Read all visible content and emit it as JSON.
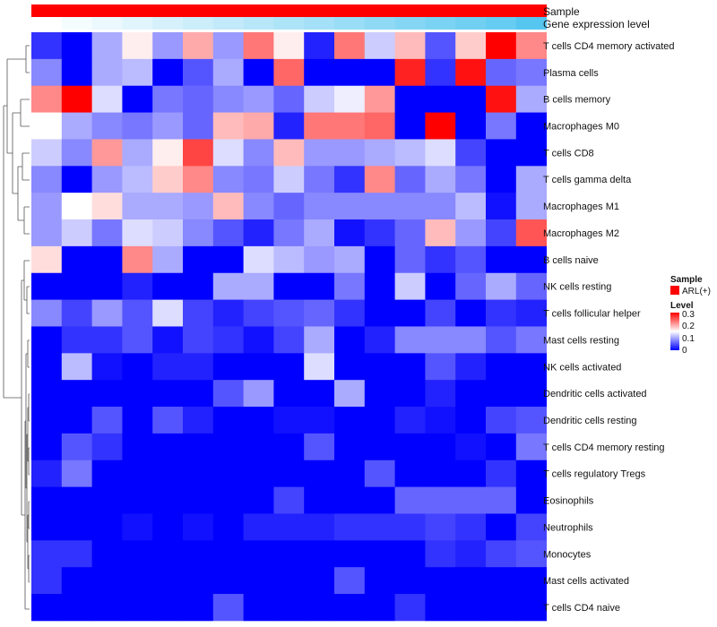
{
  "chart_data": {
    "type": "heatmap",
    "rows": [
      "T cells CD4 memory activated",
      "Plasma cells",
      "B cells memory",
      "Macrophages M0",
      "T cells CD8",
      "T cells gamma delta",
      "Macrophages M1",
      "Macrophages M2",
      "B cells naive",
      "NK cells resting",
      "T cells follicular helper",
      "Mast cells resting",
      "NK cells activated",
      "Dendritic cells activated",
      "Dendritic cells resting",
      "T cells CD4 memory resting",
      "T cells regulatory  Tregs",
      "Eosinophils",
      "Neutrophils",
      "Monocytes",
      "Mast cells activated",
      "T cells CD4 naive"
    ],
    "values": [
      [
        0.03,
        0.0,
        0.1,
        0.16,
        0.09,
        0.2,
        0.09,
        0.23,
        0.16,
        0.02,
        0.23,
        0.12,
        0.19,
        0.05,
        0.18,
        0.3,
        0.22
      ],
      [
        0.08,
        0.0,
        0.1,
        0.11,
        0.0,
        0.05,
        0.1,
        0.0,
        0.24,
        0.0,
        0.0,
        0.0,
        0.28,
        0.03,
        0.29,
        0.06,
        0.07
      ],
      [
        0.22,
        0.3,
        0.13,
        0.0,
        0.07,
        0.06,
        0.08,
        0.09,
        0.06,
        0.12,
        0.14,
        0.21,
        0.0,
        0.0,
        0.0,
        0.29,
        0.1
      ],
      [
        0.15,
        0.1,
        0.08,
        0.07,
        0.09,
        0.06,
        0.19,
        0.2,
        0.02,
        0.23,
        0.23,
        0.24,
        0.0,
        0.3,
        0.0,
        0.07,
        0.0
      ],
      [
        0.12,
        0.08,
        0.21,
        0.1,
        0.16,
        0.26,
        0.13,
        0.08,
        0.19,
        0.09,
        0.09,
        0.1,
        0.11,
        0.13,
        0.04,
        0.0,
        0.0
      ],
      [
        0.08,
        0.0,
        0.09,
        0.11,
        0.18,
        0.22,
        0.08,
        0.07,
        0.12,
        0.07,
        0.03,
        0.22,
        0.06,
        0.1,
        0.07,
        0.0,
        0.1
      ],
      [
        0.09,
        0.15,
        0.17,
        0.1,
        0.1,
        0.09,
        0.19,
        0.08,
        0.06,
        0.08,
        0.08,
        0.08,
        0.08,
        0.08,
        0.11,
        0.01,
        0.1
      ],
      [
        0.09,
        0.12,
        0.07,
        0.13,
        0.12,
        0.08,
        0.05,
        0.02,
        0.07,
        0.1,
        0.01,
        0.03,
        0.06,
        0.19,
        0.09,
        0.04,
        0.25
      ],
      [
        0.17,
        0.0,
        0.0,
        0.22,
        0.1,
        0.0,
        0.0,
        0.13,
        0.11,
        0.09,
        0.1,
        0.0,
        0.06,
        0.03,
        0.05,
        0.0,
        0.0
      ],
      [
        0.0,
        0.0,
        0.0,
        0.02,
        0.0,
        0.0,
        0.1,
        0.1,
        0.0,
        0.0,
        0.07,
        0.0,
        0.12,
        0.0,
        0.06,
        0.1,
        0.06
      ],
      [
        0.08,
        0.04,
        0.09,
        0.05,
        0.13,
        0.04,
        0.02,
        0.04,
        0.05,
        0.06,
        0.03,
        0.0,
        0.0,
        0.04,
        0.0,
        0.03,
        0.02
      ],
      [
        0.0,
        0.03,
        0.03,
        0.05,
        0.01,
        0.04,
        0.03,
        0.01,
        0.04,
        0.1,
        0.0,
        0.02,
        0.08,
        0.08,
        0.08,
        0.05,
        0.07
      ],
      [
        0.0,
        0.11,
        0.01,
        0.0,
        0.02,
        0.02,
        0.0,
        0.0,
        0.0,
        0.13,
        0.0,
        0.0,
        0.0,
        0.05,
        0.02,
        0.0,
        0.0
      ],
      [
        0.0,
        0.0,
        0.0,
        0.0,
        0.0,
        0.0,
        0.05,
        0.09,
        0.0,
        0.0,
        0.1,
        0.0,
        0.0,
        0.02,
        0.0,
        0.0,
        0.0
      ],
      [
        0.0,
        0.0,
        0.05,
        0.0,
        0.05,
        0.02,
        0.0,
        0.0,
        0.01,
        0.01,
        0.0,
        0.0,
        0.02,
        0.01,
        0.0,
        0.04,
        0.05
      ],
      [
        0.0,
        0.05,
        0.03,
        0.0,
        0.0,
        0.0,
        0.0,
        0.0,
        0.0,
        0.05,
        0.0,
        0.0,
        0.0,
        0.0,
        0.01,
        0.0,
        0.07
      ],
      [
        0.02,
        0.07,
        0.0,
        0.0,
        0.0,
        0.0,
        0.0,
        0.0,
        0.0,
        0.0,
        0.0,
        0.05,
        0.0,
        0.0,
        0.0,
        0.03,
        0.0
      ],
      [
        0.0,
        0.0,
        0.0,
        0.0,
        0.0,
        0.0,
        0.0,
        0.0,
        0.04,
        0.0,
        0.0,
        0.0,
        0.06,
        0.06,
        0.06,
        0.06,
        0.0
      ],
      [
        0.0,
        0.0,
        0.0,
        0.01,
        0.0,
        0.01,
        0.0,
        0.02,
        0.02,
        0.02,
        0.03,
        0.03,
        0.03,
        0.04,
        0.03,
        0.0,
        0.04
      ],
      [
        0.03,
        0.03,
        0.0,
        0.0,
        0.0,
        0.0,
        0.0,
        0.0,
        0.0,
        0.0,
        0.0,
        0.0,
        0.0,
        0.03,
        0.02,
        0.04,
        0.05
      ],
      [
        0.03,
        0.0,
        0.0,
        0.0,
        0.0,
        0.0,
        0.0,
        0.0,
        0.0,
        0.0,
        0.05,
        0.0,
        0.0,
        0.0,
        0.0,
        0.0,
        0.0
      ],
      [
        0.0,
        0.0,
        0.0,
        0.0,
        0.0,
        0.0,
        0.05,
        0.0,
        0.0,
        0.0,
        0.0,
        0.0,
        0.03,
        0.0,
        0.0,
        0.0,
        0.0
      ]
    ],
    "color_scale": {
      "min": 0,
      "mid": 0.15,
      "max": 0.3,
      "colors": [
        "#0000ff",
        "#ffffff",
        "#ff0000"
      ]
    },
    "annotations": [
      {
        "name": "Sample",
        "colors_per_column": [
          "#ff0000",
          "#ff0000",
          "#ff0000",
          "#ff0000",
          "#ff0000",
          "#ff0000",
          "#ff0000",
          "#ff0000",
          "#ff0000",
          "#ff0000",
          "#ff0000",
          "#ff0000",
          "#ff0000",
          "#ff0000",
          "#ff0000",
          "#ff0000",
          "#ff0000"
        ]
      },
      {
        "name": "Gene expression level",
        "values_per_column": [
          0.0,
          0.06,
          0.12,
          0.18,
          0.24,
          0.3,
          0.36,
          0.42,
          0.48,
          0.54,
          0.6,
          0.66,
          0.72,
          0.78,
          0.84,
          0.9,
          1.0
        ],
        "low_color": "#ffffff",
        "high_color": "#56c6f0"
      }
    ],
    "legend": {
      "sample_title": "Sample",
      "sample_entry": "ARL(+)",
      "sample_color": "#ff0000",
      "level_title": "Level",
      "level_ticks": [
        "0.3",
        "0.2",
        "0.1",
        "0"
      ]
    },
    "row_dendrogram": true,
    "grid": false,
    "legend_placement": "right"
  }
}
